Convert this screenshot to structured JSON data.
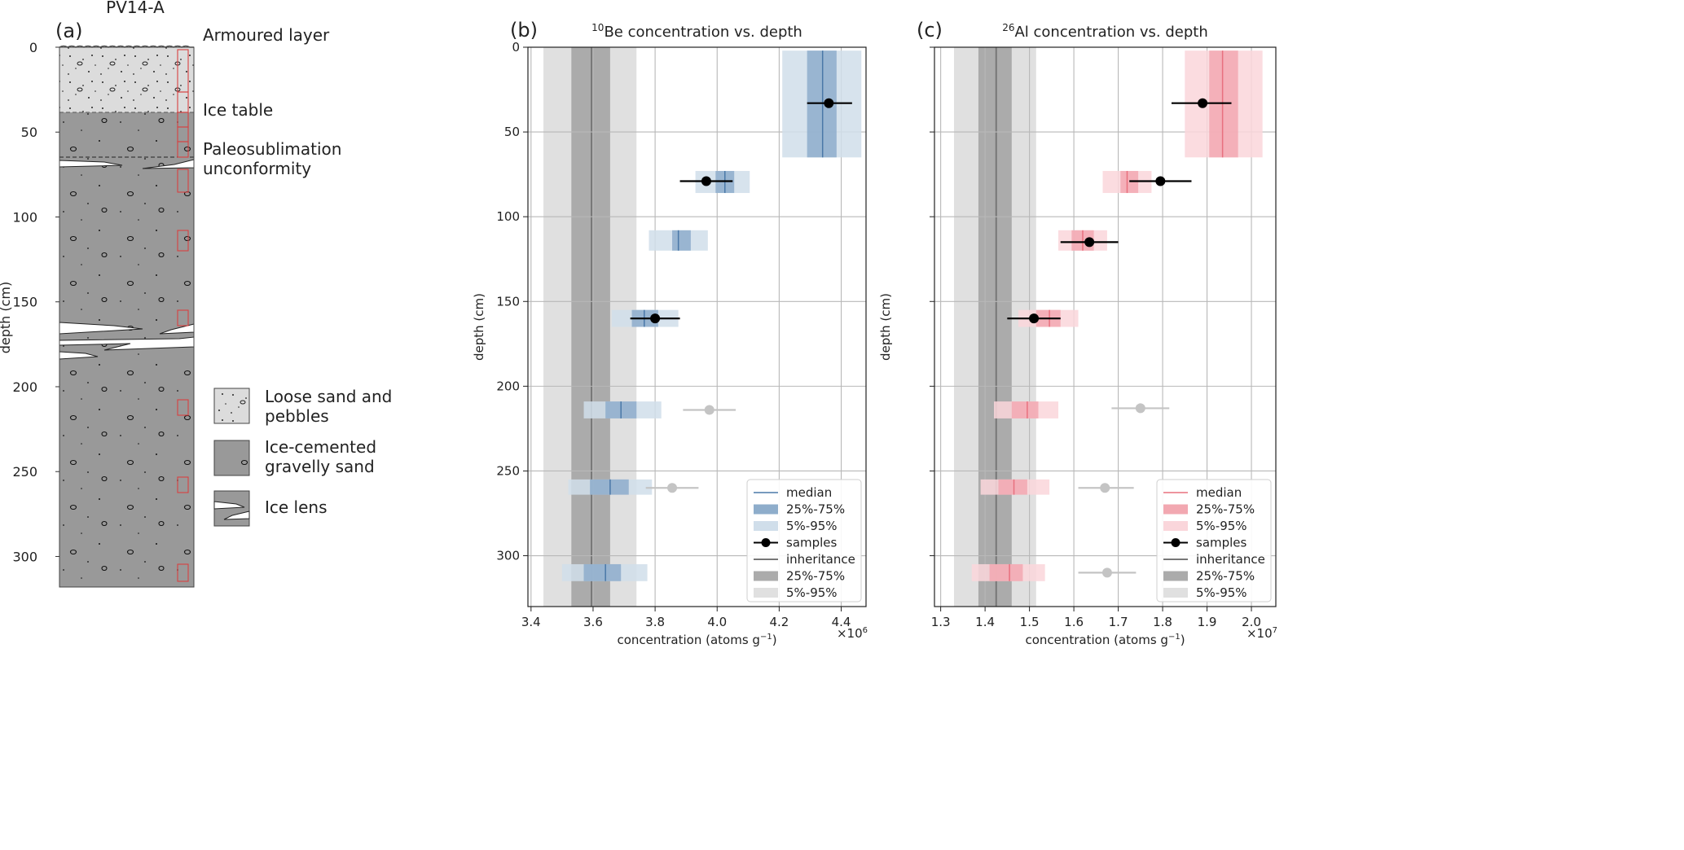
{
  "panel_a": {
    "title": "PV14-A",
    "panel_label": "(a)",
    "ylabel": "depth (cm)",
    "ticks": [
      "0",
      "50",
      "100",
      "150",
      "200",
      "250",
      "300"
    ],
    "annotations": {
      "armoured": "Armoured layer",
      "ice_table": "Ice table",
      "paleo_1": "Paleosublimation",
      "paleo_2": "unconformity"
    },
    "legend": [
      {
        "line1": "Loose sand and",
        "line2": "pebbles"
      },
      {
        "line1": "Ice-cemented",
        "line2": "gravelly sand"
      },
      {
        "line1": "Ice lens",
        "line2": ""
      }
    ]
  },
  "chart_data": [
    {
      "type": "scatter",
      "panel_label": "(b)",
      "title_sup": "10",
      "title_rest": "Be concentration vs. depth",
      "xlabel_pre": "concentration (atoms g",
      "xlabel_sup": "−1",
      "xlabel_post": ")",
      "ylabel": "depth (cm)",
      "offset_pre": "×10",
      "offset_sup": "6",
      "xlim": [
        3.39,
        4.48
      ],
      "ylim": [
        0,
        330
      ],
      "xticks": [
        "3.4",
        "3.6",
        "3.8",
        "4.0",
        "4.2",
        "4.4"
      ],
      "yticks": [
        "0",
        "50",
        "100",
        "150",
        "200",
        "250",
        "300"
      ],
      "grid": true,
      "legend_position": "bottom-right",
      "legend_labels": [
        "median",
        "25%-75%",
        "5%-95%",
        "samples",
        "inheritance",
        "25%-75%",
        "5%-95%"
      ],
      "colors": {
        "median": "#4a78a8",
        "iqr": "#8eadcb",
        "range": "#d0deea"
      },
      "inheritance": {
        "median": 3.595,
        "q25": 3.53,
        "q75": 3.655,
        "p5": 3.44,
        "p95": 3.74
      },
      "bands": [
        {
          "top": 2,
          "bottom": 65,
          "p5": 4.21,
          "q25": 4.29,
          "median": 4.34,
          "q75": 4.385,
          "p95": 4.465
        },
        {
          "top": 73,
          "bottom": 86,
          "p5": 3.93,
          "q25": 3.995,
          "median": 4.025,
          "q75": 4.055,
          "p95": 4.105
        },
        {
          "top": 108,
          "bottom": 120,
          "p5": 3.78,
          "q25": 3.855,
          "median": 3.875,
          "q75": 3.915,
          "p95": 3.97
        },
        {
          "top": 155,
          "bottom": 165,
          "p5": 3.66,
          "q25": 3.725,
          "median": 3.765,
          "q75": 3.81,
          "p95": 3.875
        },
        {
          "top": 209,
          "bottom": 219,
          "p5": 3.57,
          "q25": 3.64,
          "median": 3.69,
          "q75": 3.74,
          "p95": 3.82
        },
        {
          "top": 255,
          "bottom": 264,
          "p5": 3.52,
          "q25": 3.59,
          "median": 3.655,
          "q75": 3.715,
          "p95": 3.79
        },
        {
          "top": 305,
          "bottom": 315,
          "p5": 3.5,
          "q25": 3.57,
          "median": 3.64,
          "q75": 3.69,
          "p95": 3.775
        }
      ],
      "samples": [
        {
          "x": 4.36,
          "y": 33,
          "xerr_lo": 4.29,
          "xerr_hi": 4.435,
          "used": true
        },
        {
          "x": 3.965,
          "y": 79,
          "xerr_lo": 3.88,
          "xerr_hi": 4.05,
          "used": true
        },
        {
          "x": 3.8,
          "y": 160,
          "xerr_lo": 3.72,
          "xerr_hi": 3.88,
          "used": true
        },
        {
          "x": 3.975,
          "y": 214,
          "xerr_lo": 3.89,
          "xerr_hi": 4.06,
          "used": false
        },
        {
          "x": 3.855,
          "y": 260,
          "xerr_lo": 3.77,
          "xerr_hi": 3.94,
          "used": false
        }
      ]
    },
    {
      "type": "scatter",
      "panel_label": "(c)",
      "title_sup": "26",
      "title_rest": "Al concentration vs. depth",
      "xlabel_pre": "concentration (atoms g",
      "xlabel_sup": "−1",
      "xlabel_post": ")",
      "ylabel": "depth (cm)",
      "offset_pre": "×10",
      "offset_sup": "7",
      "xlim": [
        1.286,
        2.055
      ],
      "ylim": [
        0,
        330
      ],
      "xticks": [
        "1.3",
        "1.4",
        "1.5",
        "1.6",
        "1.7",
        "1.8",
        "1.9",
        "2.0"
      ],
      "yticks": [
        "",
        "",
        "",
        "",
        "",
        "",
        ""
      ],
      "grid": true,
      "legend_position": "bottom-right",
      "legend_labels": [
        "median",
        "25%-75%",
        "5%-95%",
        "samples",
        "inheritance",
        "25%-75%",
        "5%-95%"
      ],
      "colors": {
        "median": "#e8707e",
        "iqr": "#f2a8b1",
        "range": "#fad6db"
      },
      "inheritance": {
        "median": 1.425,
        "q25": 1.385,
        "q75": 1.46,
        "p5": 1.33,
        "p95": 1.515
      },
      "bands": [
        {
          "top": 2,
          "bottom": 65,
          "p5": 1.85,
          "q25": 1.905,
          "median": 1.935,
          "q75": 1.97,
          "p95": 2.025
        },
        {
          "top": 73,
          "bottom": 86,
          "p5": 1.665,
          "q25": 1.705,
          "median": 1.72,
          "q75": 1.745,
          "p95": 1.775
        },
        {
          "top": 108,
          "bottom": 120,
          "p5": 1.565,
          "q25": 1.595,
          "median": 1.62,
          "q75": 1.645,
          "p95": 1.675
        },
        {
          "top": 155,
          "bottom": 165,
          "p5": 1.475,
          "q25": 1.515,
          "median": 1.545,
          "q75": 1.57,
          "p95": 1.61
        },
        {
          "top": 209,
          "bottom": 219,
          "p5": 1.42,
          "q25": 1.46,
          "median": 1.495,
          "q75": 1.52,
          "p95": 1.565
        },
        {
          "top": 255,
          "bottom": 264,
          "p5": 1.39,
          "q25": 1.43,
          "median": 1.465,
          "q75": 1.495,
          "p95": 1.545
        },
        {
          "top": 305,
          "bottom": 315,
          "p5": 1.37,
          "q25": 1.41,
          "median": 1.455,
          "q75": 1.485,
          "p95": 1.535
        }
      ],
      "samples": [
        {
          "x": 1.89,
          "y": 33,
          "xerr_lo": 1.82,
          "xerr_hi": 1.955,
          "used": true
        },
        {
          "x": 1.795,
          "y": 79,
          "xerr_lo": 1.725,
          "xerr_hi": 1.865,
          "used": true
        },
        {
          "x": 1.635,
          "y": 115,
          "xerr_lo": 1.57,
          "xerr_hi": 1.7,
          "used": true
        },
        {
          "x": 1.51,
          "y": 160,
          "xerr_lo": 1.45,
          "xerr_hi": 1.57,
          "used": true
        },
        {
          "x": 1.75,
          "y": 213,
          "xerr_lo": 1.685,
          "xerr_hi": 1.815,
          "used": false
        },
        {
          "x": 1.67,
          "y": 260,
          "xerr_lo": 1.61,
          "xerr_hi": 1.735,
          "used": false
        },
        {
          "x": 1.675,
          "y": 310,
          "xerr_lo": 1.61,
          "xerr_hi": 1.74,
          "used": false
        }
      ]
    }
  ]
}
